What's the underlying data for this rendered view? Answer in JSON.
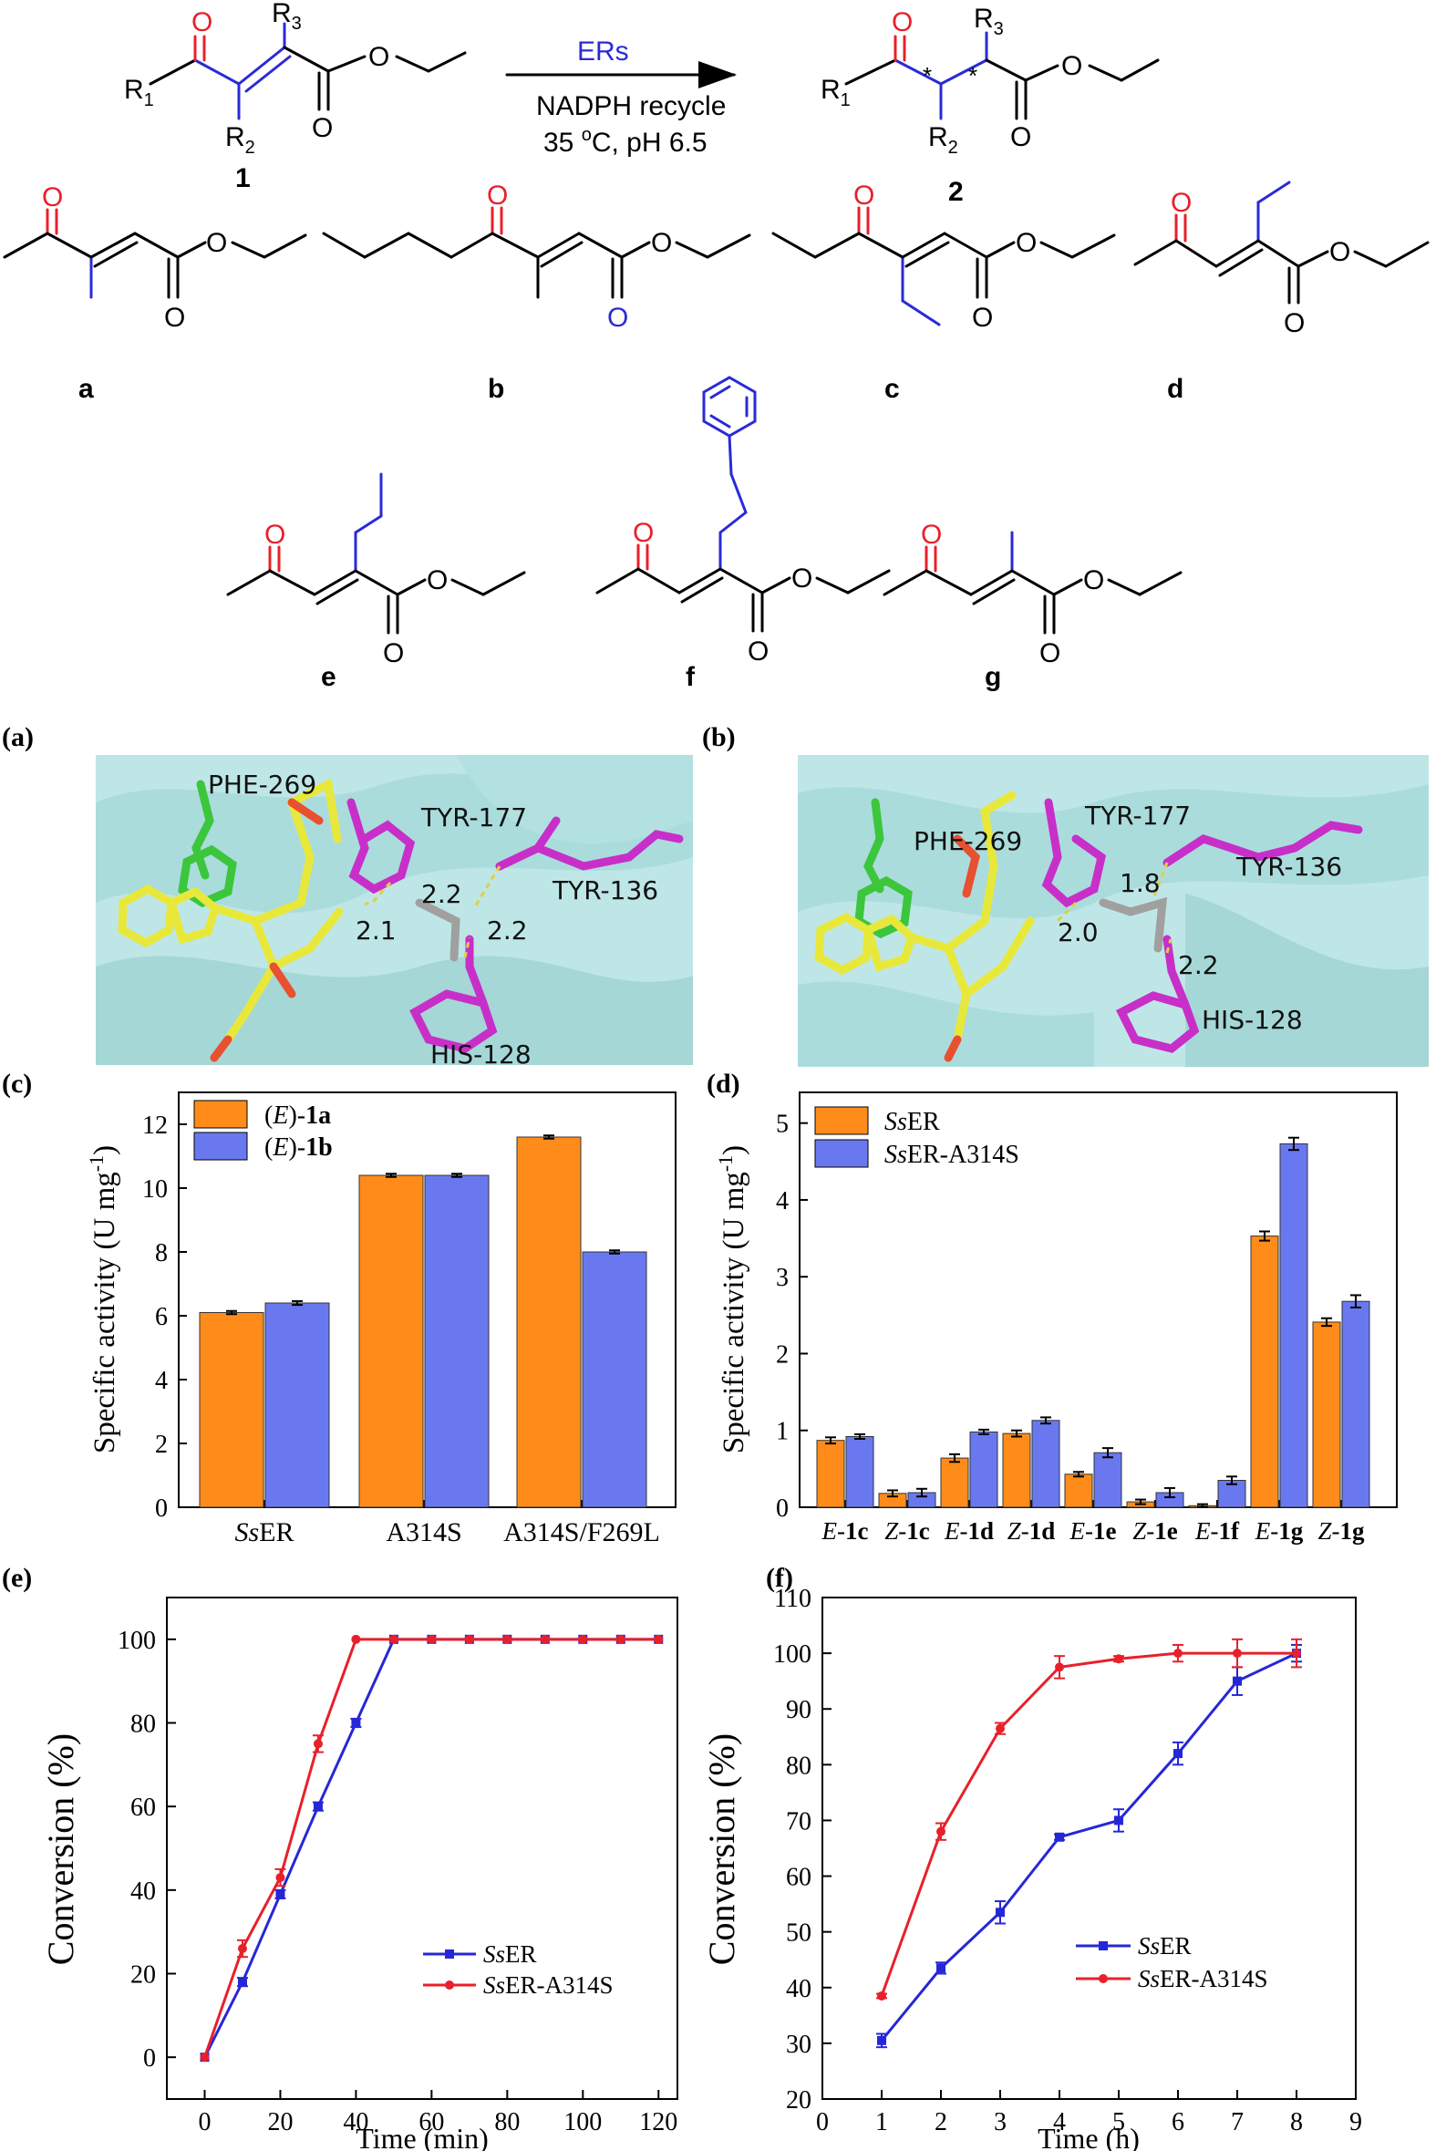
{
  "scheme": {
    "reactant_number": "1",
    "product_number": "2",
    "r1": "R",
    "r1_sub": "1",
    "r2": "R",
    "r2_sub": "2",
    "r3": "R",
    "r3_sub": "3",
    "o": "O",
    "star": "*",
    "enzyme": "ERs",
    "cofactor": "NADPH recycle",
    "temp_pre": "35 ",
    "temp_sup": "o",
    "temp_post": "C, pH 6.5"
  },
  "compounds": {
    "a": "a",
    "b": "b",
    "c": "c",
    "d": "d",
    "e": "e",
    "f": "f",
    "g": "g",
    "o": "O"
  },
  "panels": {
    "a": "(a)",
    "b": "(b)",
    "c": "(c)",
    "d": "(d)",
    "e": "(e)",
    "f": "(f)"
  },
  "structure_a": {
    "residues": [
      "PHE-269",
      "TYR-177",
      "TYR-136",
      "HIS-128"
    ],
    "distances": [
      "2.2",
      "2.1",
      "2.2"
    ]
  },
  "structure_b": {
    "residues": [
      "PHE-269",
      "TYR-177",
      "TYR-136",
      "HIS-128"
    ],
    "distances": [
      "1.8",
      "2.0",
      "2.2"
    ]
  },
  "colors": {
    "orange": "#ff8c1a",
    "blue": "#6a78f0",
    "red": "#e8202a",
    "blue_line": "#2626d9",
    "magenta": "#c82fc8",
    "green": "#3cc63c",
    "yellow": "#e8e83a",
    "cyan": "#a9dede"
  },
  "chart_data": [
    {
      "panel": "c",
      "type": "bar",
      "ylabel_main": "Specific activity (U mg",
      "ylabel_sup": "-1",
      "ylabel_end": ")",
      "categories": [
        "SsER",
        "A314S",
        "A314S/F269L"
      ],
      "category_labels": [
        {
          "italic": "Ss",
          "plain": "ER"
        },
        {
          "italic": "",
          "plain": "A314S"
        },
        {
          "italic": "",
          "plain": "A314S/F269L"
        }
      ],
      "series": [
        {
          "name": "(E)-1a",
          "legend": {
            "p1": "(",
            "i": "E",
            "p2": ")-",
            "b": "1a"
          },
          "values": [
            6.1,
            10.4,
            11.6
          ],
          "errors": [
            0.05,
            0.05,
            0.05
          ]
        },
        {
          "name": "(E)-1b",
          "legend": {
            "p1": "(",
            "i": "E",
            "p2": ")-",
            "b": "1b"
          },
          "values": [
            6.4,
            10.4,
            8.0
          ],
          "errors": [
            0.06,
            0.05,
            0.05
          ]
        }
      ],
      "ylim": [
        0,
        13
      ],
      "yticks": [
        0,
        2,
        4,
        6,
        8,
        10,
        12
      ],
      "legend_position": "top-left"
    },
    {
      "panel": "d",
      "type": "bar",
      "ylabel_main": "Specific activity (U mg",
      "ylabel_sup": "-1",
      "ylabel_end": ")",
      "categories": [
        "E-1c",
        "Z-1c",
        "E-1d",
        "Z-1d",
        "E-1e",
        "Z-1e",
        "E-1f",
        "E-1g",
        "Z-1g"
      ],
      "category_labels": [
        {
          "i": "E",
          "b": "1c"
        },
        {
          "i": "Z",
          "b": "1c"
        },
        {
          "i": "E",
          "b": "1d"
        },
        {
          "i": "Z",
          "b": "1d"
        },
        {
          "i": "E",
          "b": "1e"
        },
        {
          "i": "Z",
          "b": "1e"
        },
        {
          "i": "E",
          "b": "1f"
        },
        {
          "i": "E",
          "b": "1g"
        },
        {
          "i": "Z",
          "b": "1g"
        }
      ],
      "series": [
        {
          "name": "SsER",
          "legend": {
            "i": "Ss",
            "p": "ER"
          },
          "values": [
            0.87,
            0.18,
            0.64,
            0.96,
            0.43,
            0.07,
            0.02,
            3.53,
            2.41
          ],
          "errors": [
            0.04,
            0.04,
            0.05,
            0.04,
            0.03,
            0.03,
            0.02,
            0.06,
            0.05
          ]
        },
        {
          "name": "SsER-A314S",
          "legend": {
            "i": "Ss",
            "p": "ER-A314S"
          },
          "values": [
            0.92,
            0.19,
            0.98,
            1.13,
            0.71,
            0.19,
            0.35,
            4.73,
            2.68
          ],
          "errors": [
            0.03,
            0.05,
            0.03,
            0.04,
            0.06,
            0.06,
            0.05,
            0.08,
            0.08
          ]
        }
      ],
      "ylim": [
        0,
        5.4
      ],
      "yticks": [
        0,
        1,
        2,
        3,
        4,
        5
      ],
      "legend_position": "top-left"
    },
    {
      "panel": "e",
      "type": "line",
      "xlabel": "Time (min)",
      "ylabel": "Conversion (%)",
      "xlim": [
        -10,
        125
      ],
      "ylim": [
        -10,
        110
      ],
      "xticks": [
        0,
        20,
        40,
        60,
        80,
        100,
        120
      ],
      "yticks": [
        0,
        20,
        40,
        60,
        80,
        100
      ],
      "series": [
        {
          "name": "SsER",
          "legend": {
            "i": "Ss",
            "p": "ER"
          },
          "x": [
            0,
            10,
            20,
            30,
            40,
            50,
            60,
            70,
            80,
            90,
            100,
            110,
            120
          ],
          "y": [
            0,
            18,
            39,
            60,
            80,
            100,
            100,
            100,
            100,
            100,
            100,
            100,
            100
          ],
          "errors": [
            0,
            1,
            1,
            1,
            1,
            0,
            0,
            0,
            0,
            0,
            0,
            0,
            0
          ]
        },
        {
          "name": "SsER-A314S",
          "legend": {
            "i": "Ss",
            "p": "ER-A314S"
          },
          "x": [
            0,
            10,
            20,
            30,
            40,
            50,
            60,
            70,
            80,
            90,
            100,
            110,
            120
          ],
          "y": [
            0,
            26,
            43,
            75,
            100,
            100,
            100,
            100,
            100,
            100,
            100,
            100,
            100
          ],
          "errors": [
            0,
            2,
            2,
            2,
            0,
            0,
            0,
            0,
            0,
            0,
            0,
            0,
            0
          ]
        }
      ],
      "legend_position": "bottom-right"
    },
    {
      "panel": "f",
      "type": "line",
      "xlabel": "Time (h)",
      "ylabel": "Conversion (%)",
      "xlim": [
        0,
        9
      ],
      "ylim": [
        20,
        110
      ],
      "xticks": [
        0,
        1,
        2,
        3,
        4,
        5,
        6,
        7,
        8,
        9
      ],
      "yticks": [
        20,
        30,
        40,
        50,
        60,
        70,
        80,
        90,
        100,
        110
      ],
      "series": [
        {
          "name": "SsER",
          "legend": {
            "i": "Ss",
            "p": "ER"
          },
          "x": [
            1,
            2,
            3,
            4,
            5,
            6,
            7,
            8
          ],
          "y": [
            30.5,
            43.5,
            53.5,
            67,
            70,
            82,
            95,
            100
          ],
          "errors": [
            1.2,
            1.0,
            2.0,
            0.5,
            2.0,
            2.0,
            2.5,
            1.5
          ]
        },
        {
          "name": "SsER-A314S",
          "legend": {
            "i": "Ss",
            "p": "ER-A314S"
          },
          "x": [
            1,
            2,
            3,
            4,
            5,
            6,
            7,
            8
          ],
          "y": [
            38.5,
            68,
            86.5,
            97.5,
            99,
            100,
            100,
            100
          ],
          "errors": [
            0.4,
            1.5,
            1.0,
            2.0,
            0.5,
            1.5,
            2.5,
            2.5
          ]
        }
      ],
      "legend_position": "bottom-right"
    }
  ]
}
